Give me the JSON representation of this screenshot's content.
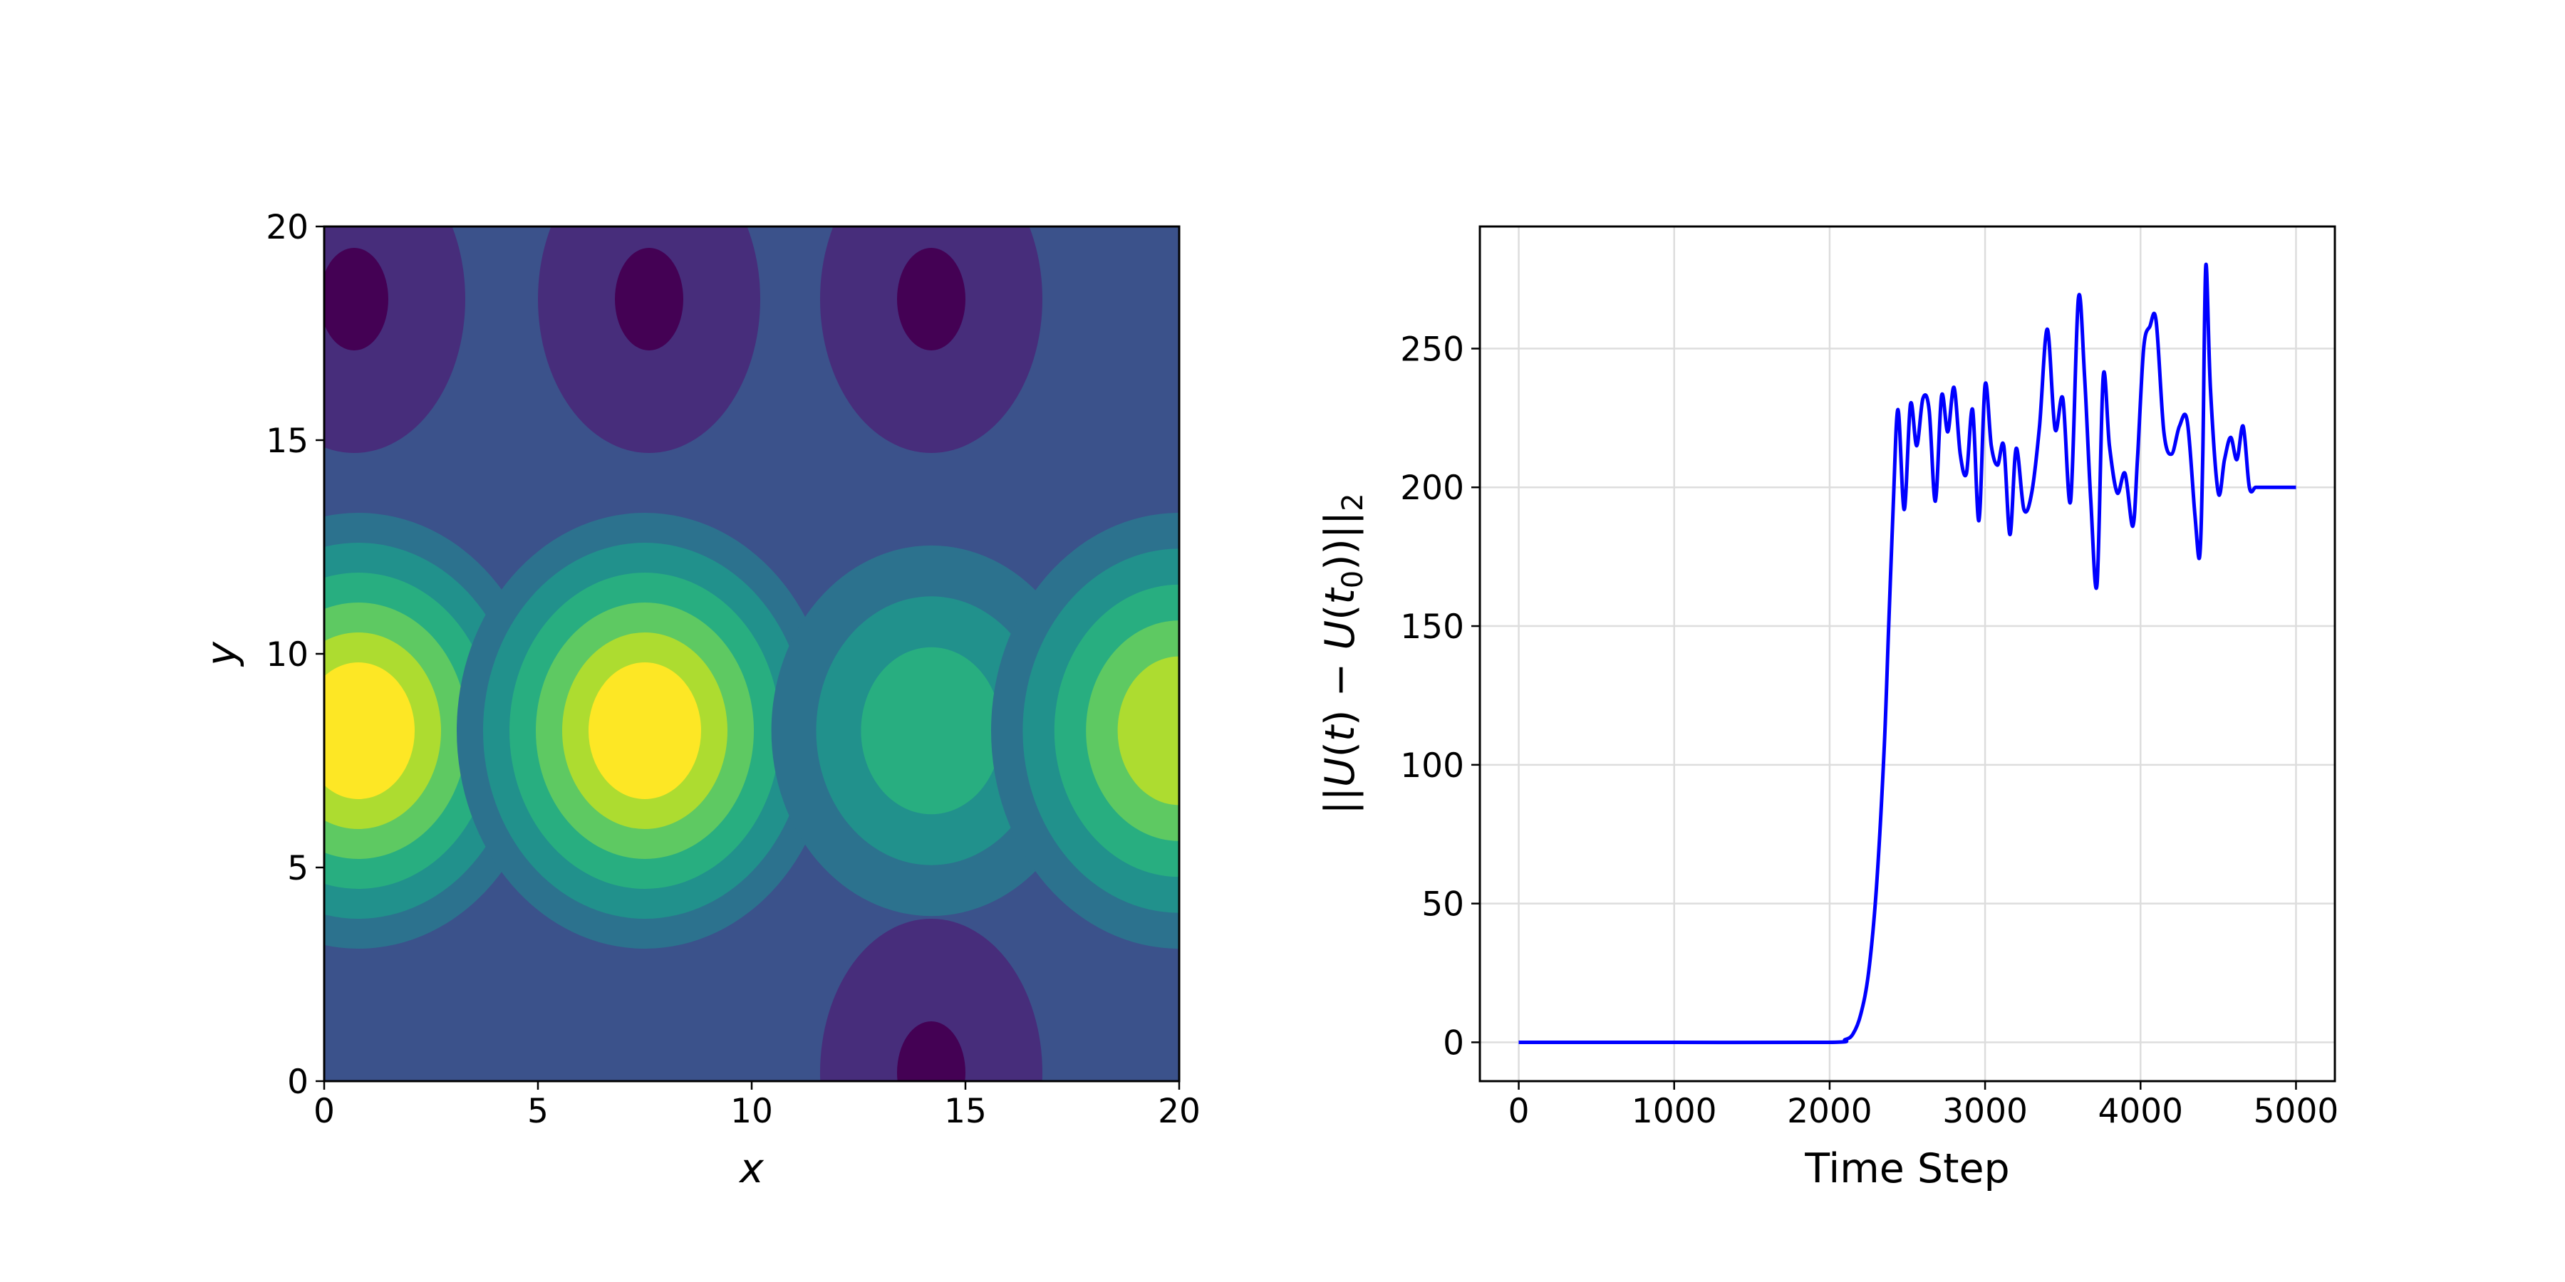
{
  "colors": {
    "line": "#0000ff",
    "grid": "#dddddd",
    "viridis": [
      "#440154",
      "#472d7b",
      "#3b528b",
      "#2c728e",
      "#21918c",
      "#28ae80",
      "#5ec962",
      "#addc30",
      "#fde725"
    ]
  },
  "chart_data": [
    {
      "type": "heatmap",
      "subtype": "filled-contour",
      "colormap": "viridis",
      "xlabel": "x",
      "ylabel": "y",
      "xlim": [
        0,
        20
      ],
      "ylim": [
        0,
        20
      ],
      "xticks": [
        "0",
        "5",
        "10",
        "15",
        "20"
      ],
      "yticks": [
        "0",
        "5",
        "10",
        "15",
        "20"
      ],
      "grid": false,
      "field": {
        "base_level": 2,
        "peaks": [
          {
            "x": 0.8,
            "y": 8.2,
            "level": 8
          },
          {
            "x": 7.5,
            "y": 8.2,
            "level": 8
          },
          {
            "x": 14.2,
            "y": 8.2,
            "level": 5
          },
          {
            "x": 20.0,
            "y": 8.2,
            "level": 7
          }
        ],
        "troughs": [
          {
            "x": 0.7,
            "y": 18.3,
            "level": 0
          },
          {
            "x": 7.6,
            "y": 18.3,
            "level": 0
          },
          {
            "x": 14.2,
            "y": 18.3,
            "level": 0
          },
          {
            "x": 14.2,
            "y": 0.2,
            "level": 0
          }
        ]
      }
    },
    {
      "type": "line",
      "xlabel": "Time Step",
      "ylabel": "||U(t) − U(t0)||2",
      "xlim": [
        -250,
        5250
      ],
      "ylim": [
        -14,
        294
      ],
      "xticks": [
        "0",
        "1000",
        "2000",
        "3000",
        "4000",
        "5000"
      ],
      "yticks": [
        "0",
        "50",
        "100",
        "150",
        "200",
        "250"
      ],
      "grid": true,
      "series": [
        {
          "x": [
            0,
            1000,
            2000,
            2100,
            2150,
            2200,
            2250,
            2300,
            2350,
            2380,
            2410,
            2440,
            2480,
            2520,
            2560,
            2600,
            2640,
            2680,
            2720,
            2760,
            2800,
            2840,
            2880,
            2920,
            2960,
            3000,
            3040,
            3080,
            3120,
            3160,
            3200,
            3250,
            3300,
            3350,
            3400,
            3450,
            3500,
            3550,
            3600,
            3640,
            3680,
            3720,
            3760,
            3800,
            3850,
            3900,
            3950,
            3980,
            4020,
            4060,
            4100,
            4150,
            4200,
            4250,
            4300,
            4350,
            4380,
            4400,
            4420,
            4450,
            4500,
            4540,
            4580,
            4620,
            4660,
            4700,
            4740,
            4780,
            4820,
            4860,
            4900,
            4940,
            4970,
            5000
          ],
          "y": [
            0,
            0,
            0,
            1,
            3,
            10,
            25,
            55,
            105,
            150,
            195,
            228,
            192,
            230,
            215,
            232,
            228,
            195,
            233,
            220,
            236,
            212,
            205,
            228,
            188,
            237,
            215,
            208,
            215,
            183,
            214,
            192,
            198,
            222,
            257,
            221,
            232,
            195,
            268,
            240,
            195,
            165,
            240,
            215,
            198,
            205,
            186,
            210,
            250,
            258,
            260,
            220,
            212,
            222,
            224,
            190,
            175,
            210,
            280,
            235,
            198,
            210,
            218,
            210,
            222,
            200,
            200,
            200,
            200,
            200,
            200,
            200,
            200,
            200
          ]
        }
      ]
    }
  ]
}
